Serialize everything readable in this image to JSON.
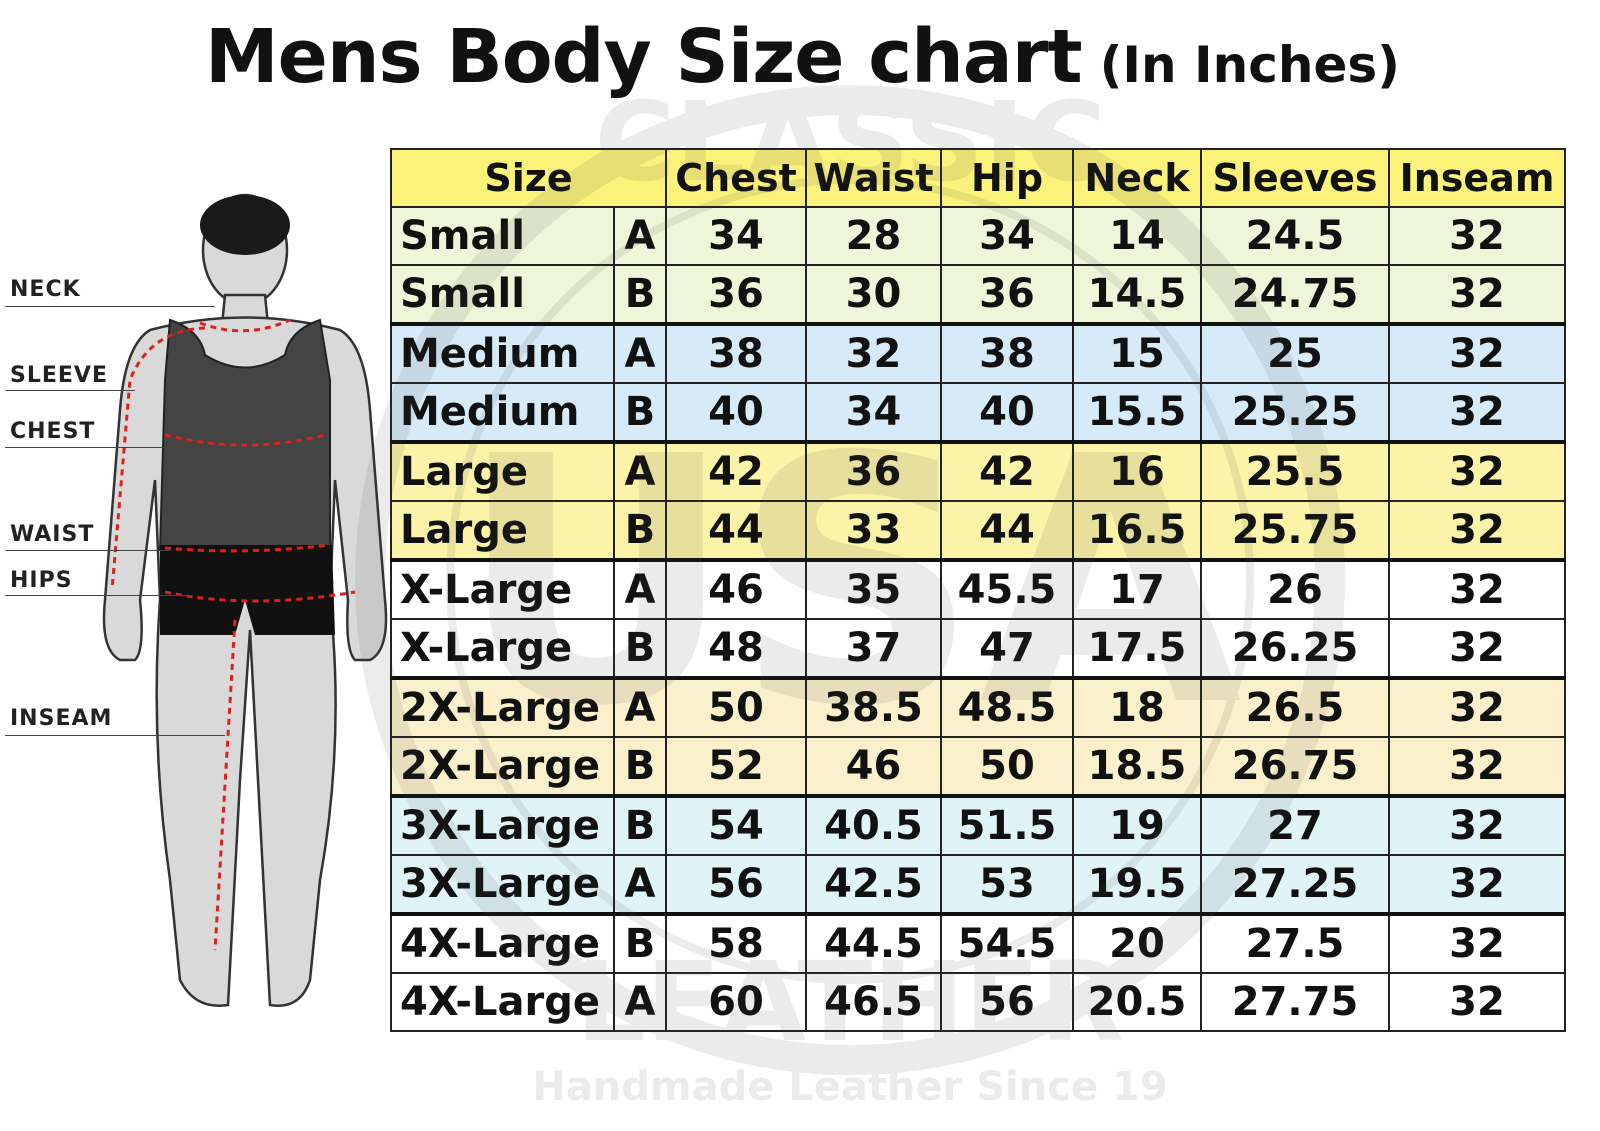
{
  "title": {
    "main": "Mens Body Size chart",
    "sub": "(In Inches)"
  },
  "watermark": {
    "top": "CLASSIC",
    "center": "USA",
    "bottom": "LEATHER",
    "tagline": "Handmade Leather Since 19"
  },
  "figure": {
    "labels": [
      "NECK",
      "SLEEVE",
      "CHEST",
      "WAIST",
      "HIPS",
      "INSEAM"
    ],
    "measure_line_color": "#e02020"
  },
  "colors": {
    "header": "#fbf27a",
    "small": "#eef5d8",
    "medium": "#d6eaf7",
    "large": "#fbf3a8",
    "xlarge": "#ffffff",
    "2xlarge": "#fbf0cc",
    "3xlarge": "#e0f4f8",
    "4xlarge": "#ffffff"
  },
  "chart_data": {
    "type": "table",
    "columns": [
      "Size",
      "Chest",
      "Waist",
      "Hip",
      "Neck",
      "Sleeves",
      "Inseam"
    ],
    "rows": [
      {
        "size": "Small",
        "fit": "A",
        "group": "small",
        "values": [
          "34",
          "28",
          "34",
          "14",
          "24.5",
          "32"
        ]
      },
      {
        "size": "Small",
        "fit": "B",
        "group": "small",
        "values": [
          "36",
          "30",
          "36",
          "14.5",
          "24.75",
          "32"
        ]
      },
      {
        "size": "Medium",
        "fit": "A",
        "group": "medium",
        "values": [
          "38",
          "32",
          "38",
          "15",
          "25",
          "32"
        ]
      },
      {
        "size": "Medium",
        "fit": "B",
        "group": "medium",
        "values": [
          "40",
          "34",
          "40",
          "15.5",
          "25.25",
          "32"
        ]
      },
      {
        "size": "Large",
        "fit": "A",
        "group": "large",
        "values": [
          "42",
          "36",
          "42",
          "16",
          "25.5",
          "32"
        ]
      },
      {
        "size": "Large",
        "fit": "B",
        "group": "large",
        "values": [
          "44",
          "33",
          "44",
          "16.5",
          "25.75",
          "32"
        ]
      },
      {
        "size": "X-Large",
        "fit": "A",
        "group": "xlarge",
        "values": [
          "46",
          "35",
          "45.5",
          "17",
          "26",
          "32"
        ]
      },
      {
        "size": "X-Large",
        "fit": "B",
        "group": "xlarge",
        "values": [
          "48",
          "37",
          "47",
          "17.5",
          "26.25",
          "32"
        ]
      },
      {
        "size": "2X-Large",
        "fit": "A",
        "group": "2xlarge",
        "values": [
          "50",
          "38.5",
          "48.5",
          "18",
          "26.5",
          "32"
        ]
      },
      {
        "size": "2X-Large",
        "fit": "B",
        "group": "2xlarge",
        "values": [
          "52",
          "46",
          "50",
          "18.5",
          "26.75",
          "32"
        ]
      },
      {
        "size": "3X-Large",
        "fit": "B",
        "group": "3xlarge",
        "values": [
          "54",
          "40.5",
          "51.5",
          "19",
          "27",
          "32"
        ]
      },
      {
        "size": "3X-Large",
        "fit": "A",
        "group": "3xlarge",
        "values": [
          "56",
          "42.5",
          "53",
          "19.5",
          "27.25",
          "32"
        ]
      },
      {
        "size": "4X-Large",
        "fit": "B",
        "group": "4xlarge",
        "values": [
          "58",
          "44.5",
          "54.5",
          "20",
          "27.5",
          "32"
        ]
      },
      {
        "size": "4X-Large",
        "fit": "A",
        "group": "4xlarge",
        "values": [
          "60",
          "46.5",
          "56",
          "20.5",
          "27.75",
          "32"
        ]
      }
    ]
  }
}
